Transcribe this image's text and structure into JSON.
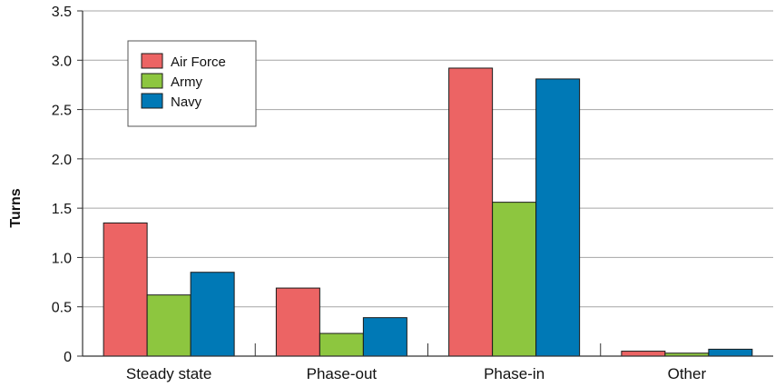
{
  "chart_data": {
    "type": "bar",
    "ylabel": "Turns",
    "xlabel": "",
    "title": "",
    "categories": [
      "Steady state",
      "Phase-out",
      "Phase-in",
      "Other"
    ],
    "series": [
      {
        "name": "Air Force",
        "values": [
          1.35,
          0.69,
          2.92,
          0.05
        ],
        "color": "#ec6464"
      },
      {
        "name": "Army",
        "values": [
          0.62,
          0.23,
          1.56,
          0.03
        ],
        "color": "#8dc63f"
      },
      {
        "name": "Navy",
        "values": [
          0.85,
          0.39,
          2.81,
          0.07
        ],
        "color": "#0079b6"
      }
    ],
    "ylim": [
      0,
      3.5
    ],
    "yticks": [
      "0",
      "0.5",
      "1.0",
      "1.5",
      "2.0",
      "2.5",
      "3.0",
      "3.5"
    ],
    "grid": true,
    "legend_position": "top-left"
  }
}
